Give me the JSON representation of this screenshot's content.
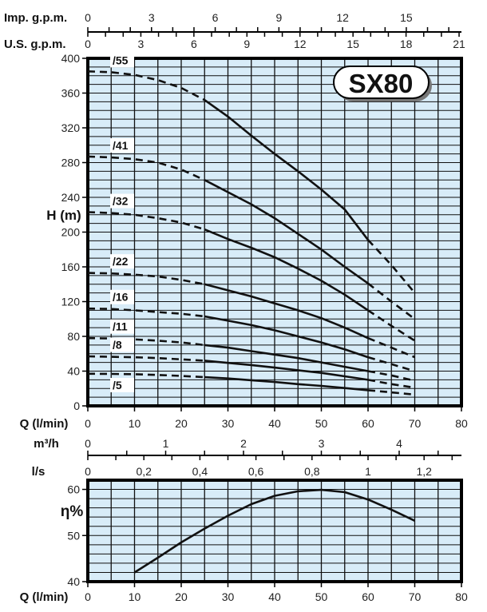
{
  "chart_data": [
    {
      "type": "line",
      "badge": "SX80",
      "ylabel": "H (m)",
      "xlabel": "Q (l/min)",
      "xlim": [
        0,
        80
      ],
      "ylim": [
        0,
        400
      ],
      "grid": true,
      "x_ticks": [
        "0",
        "10",
        "20",
        "30",
        "40",
        "50",
        "60",
        "70",
        "80"
      ],
      "y_ticks": [
        "0",
        "40",
        "80",
        "120",
        "160",
        "200",
        "240",
        "280",
        "320",
        "360",
        "400"
      ],
      "secondary_axes": {
        "imp_label": "Imp. g.p.m.",
        "imp_ticks": [
          "0",
          "3",
          "6",
          "9",
          "12",
          "15"
        ],
        "us_label": "U.S. g.p.m.",
        "us_ticks": [
          "0",
          "3",
          "6",
          "9",
          "12",
          "15",
          "18",
          "21"
        ],
        "m3h_label": "m³/h",
        "m3h_ticks": [
          "0",
          "1",
          "2",
          "3",
          "4"
        ],
        "ls_label": "l/s",
        "ls_ticks": [
          "0",
          "0,2",
          "0,4",
          "0,6",
          "0,8",
          "1",
          "1,2"
        ]
      },
      "note": "",
      "x": [
        0,
        5,
        10,
        15,
        20,
        25,
        30,
        35,
        40,
        45,
        50,
        55,
        60,
        65,
        70
      ],
      "dashed_ranges": [
        [
          0,
          25
        ],
        [
          60,
          70
        ]
      ],
      "series": [
        {
          "name": "/55",
          "values": [
            385,
            384,
            381,
            375,
            366,
            352,
            333,
            311,
            290,
            270,
            249,
            226,
            191,
            162,
            130
          ]
        },
        {
          "name": "/41",
          "values": [
            287,
            286,
            284,
            280,
            272,
            260,
            246,
            232,
            216,
            198,
            180,
            160,
            141,
            120,
            100
          ]
        },
        {
          "name": "/32",
          "values": [
            223,
            222,
            220,
            216,
            211,
            203,
            192,
            182,
            171,
            158,
            144,
            128,
            110,
            92,
            75
          ]
        },
        {
          "name": "/22",
          "values": [
            153,
            152.5,
            151,
            149,
            145,
            140,
            133,
            126,
            118,
            110,
            101,
            90,
            78,
            67,
            56
          ]
        },
        {
          "name": "/16",
          "values": [
            112,
            111.5,
            110,
            108,
            106,
            103,
            98,
            93,
            87,
            80,
            73,
            65,
            56,
            48,
            40
          ]
        },
        {
          "name": "/11",
          "values": [
            78,
            77.5,
            76.5,
            75,
            73,
            70,
            67,
            63,
            59,
            55,
            50,
            45,
            40,
            35,
            29
          ]
        },
        {
          "name": "/8",
          "values": [
            57,
            56.5,
            56,
            55,
            53.5,
            52,
            49.5,
            47,
            44,
            41,
            38,
            34,
            30,
            25,
            21
          ]
        },
        {
          "name": "/5",
          "values": [
            37,
            36.8,
            36.4,
            35.6,
            34.5,
            33,
            31.5,
            29.5,
            27.5,
            25,
            23,
            20.5,
            18,
            15.5,
            13
          ]
        }
      ]
    },
    {
      "type": "line",
      "ylabel": "η%",
      "xlabel": "Q (l/min)",
      "xlim": [
        0,
        80
      ],
      "ylim": [
        40,
        62
      ],
      "grid": true,
      "x_ticks": [
        "0",
        "10",
        "20",
        "30",
        "40",
        "50",
        "60",
        "70",
        "80"
      ],
      "y_ticks": [
        "40",
        "50",
        "60"
      ],
      "x": [
        10,
        15,
        20,
        25,
        30,
        35,
        40,
        45,
        50,
        55,
        60,
        65,
        70
      ],
      "values": [
        42,
        45.2,
        48.5,
        51.5,
        54.3,
        56.8,
        58.6,
        59.6,
        59.9,
        59.4,
        57.8,
        55.6,
        53.2
      ]
    }
  ],
  "colors": {
    "plot_background": "#d8ecf8",
    "line": "#111111"
  }
}
